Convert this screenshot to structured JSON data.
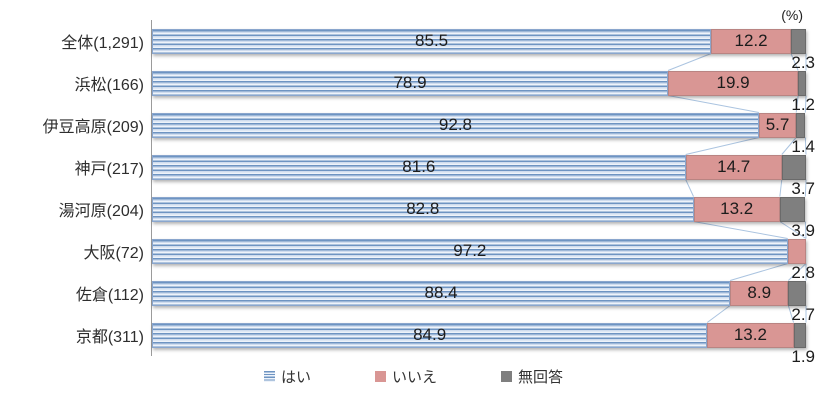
{
  "percent_label": "(%)",
  "legend": {
    "items": [
      {
        "label": "はい",
        "swatch": "striped-blue"
      },
      {
        "label": "いいえ",
        "swatch": "pink"
      },
      {
        "label": "無回答",
        "swatch": "gray"
      }
    ]
  },
  "colors": {
    "hai_stripe_dark": "#6e94c2",
    "hai_stripe_mid": "#cfdcee",
    "hai_stripe_light": "#eef3fa",
    "hai_border": "#8aa6cd",
    "iie_fill": "#d99694",
    "iie_border": "#b98482",
    "mukaito_fill": "#7f7f7f",
    "mukaito_border": "#6a6a6a",
    "series_line": "#abc4e0",
    "axis": "#9b9b9b"
  },
  "chart_data": {
    "type": "bar",
    "orientation": "horizontal",
    "stacked": true,
    "unit": "%",
    "xlim": [
      0,
      100
    ],
    "grid": false,
    "legend_position": "bottom",
    "categories": [
      "全体(1,291)",
      "浜松(166)",
      "伊豆高原(209)",
      "神戸(217)",
      "湯河原(204)",
      "大阪(72)",
      "佐倉(112)",
      "京都(311)"
    ],
    "series": [
      {
        "name": "はい",
        "values": [
          85.5,
          78.9,
          92.8,
          81.6,
          82.8,
          97.2,
          88.4,
          84.9
        ]
      },
      {
        "name": "いいえ",
        "values": [
          12.2,
          19.9,
          5.7,
          14.7,
          13.2,
          2.8,
          8.9,
          13.2
        ]
      },
      {
        "name": "無回答",
        "values": [
          2.3,
          1.2,
          1.4,
          3.7,
          3.9,
          0.0,
          2.7,
          1.9
        ]
      }
    ]
  }
}
